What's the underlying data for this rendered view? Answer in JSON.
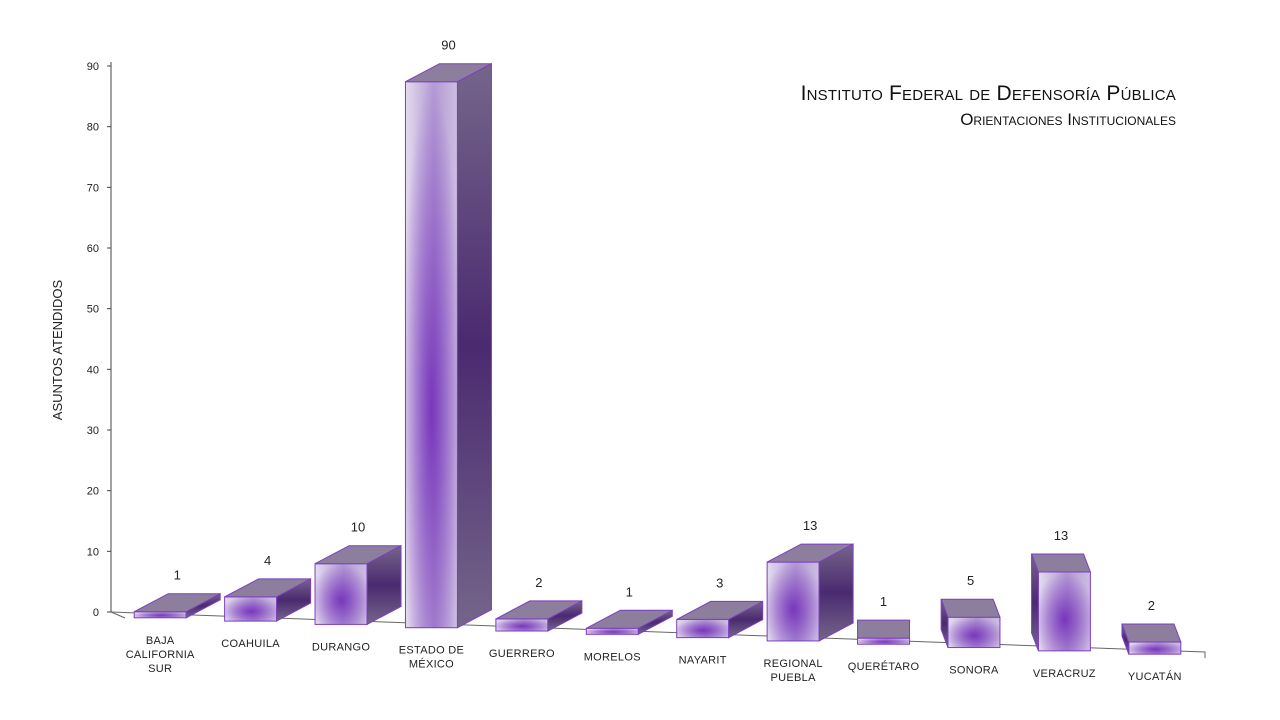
{
  "chart_data": {
    "type": "bar",
    "title": "Instituto Federal de Defensoría Pública",
    "subtitle": "Orientaciones Institucionales",
    "xlabel": "",
    "ylabel": "ASUNTOS ATENDIDOS",
    "ylim": [
      0,
      90
    ],
    "yticks": [
      0,
      10,
      20,
      30,
      40,
      50,
      60,
      70,
      80,
      90
    ],
    "categories": [
      [
        "BAJA",
        "CALIFORNIA",
        "SUR"
      ],
      [
        "COAHUILA"
      ],
      [
        "DURANGO"
      ],
      [
        "ESTADO DE",
        "MÉXICO"
      ],
      [
        "GUERRERO"
      ],
      [
        "MORELOS"
      ],
      [
        "NAYARIT"
      ],
      [
        "REGIONAL",
        "PUEBLA"
      ],
      [
        "QUERÉTARO"
      ],
      [
        "SONORA"
      ],
      [
        "VERACRUZ"
      ],
      [
        "YUCATÁN"
      ]
    ],
    "values": [
      1,
      4,
      10,
      90,
      2,
      1,
      3,
      13,
      1,
      5,
      13,
      2
    ],
    "grid": false,
    "colors": {
      "front_light": "#d9cdea",
      "front_dark": "#6a2bb0",
      "side": "#6b5a7d",
      "side_dark": "#3f2463",
      "top": "#8c7e9c",
      "edge": "#7d3fc0"
    }
  }
}
